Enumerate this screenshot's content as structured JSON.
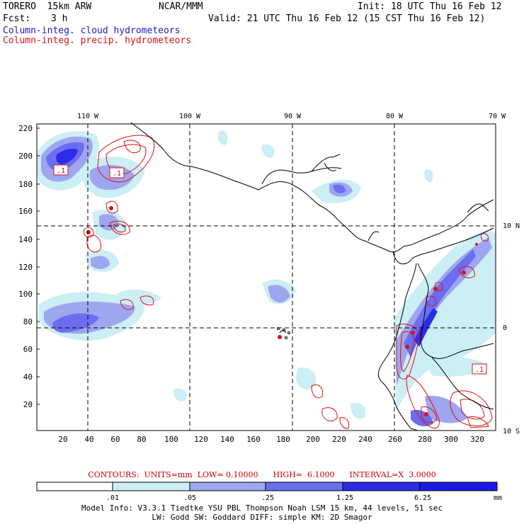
{
  "header": {
    "model": "TORERO  15km ARW",
    "org": "NCAR/MMM",
    "init": "Init: 18 UTC Thu 16 Feb 12",
    "fcst_label": "Fcst:",
    "fcst_value": "3 h",
    "valid": "Valid: 21 UTC Thu 16 Feb 12 (15 CST Thu 16 Feb 12)",
    "field1": "Column-integ. cloud hydrometeors",
    "field2": "Column-integ. precip. hydrometeors"
  },
  "map": {
    "lon_labels": [
      "110 W",
      "100 W",
      "90 W",
      "80 W",
      "70 W"
    ],
    "lat_labels": [
      "10 N",
      "0",
      "10 S"
    ],
    "y_ticks": [
      "220",
      "200",
      "180",
      "160",
      "140",
      "120",
      "100",
      "80",
      "60",
      "40",
      "20"
    ],
    "x_ticks": [
      "20",
      "40",
      "60",
      "80",
      "100",
      "120",
      "140",
      "160",
      "180",
      "200",
      "220",
      "240",
      "260",
      "280",
      "300",
      "320"
    ],
    "box_labels": [
      ".1",
      ".1",
      ".1"
    ],
    "colors": {
      "cloud_light": "#cceef5",
      "cloud_mid": "#9ea6f0",
      "cloud_dark": "#6b6ef0",
      "cloud_darkest": "#2c2ce8",
      "precip": "#dd1111",
      "coast": "#000000"
    }
  },
  "contours": {
    "text": "CONTOURS:  UNITS=mm  LOW= 0.10000      HIGH=  6.1000      INTERVAL=X  3.0000"
  },
  "colorbar": {
    "labels": [
      ".01",
      ".05",
      ".25",
      "1.25",
      "6.25"
    ],
    "unit": "mm",
    "colors": [
      "#ffffff",
      "#cceef5",
      "#9ea6f0",
      "#6b6ef0",
      "#2c2ce8"
    ]
  },
  "footer": {
    "line1": "Model Info: V3.3.1   Tiedtke YSU PBL  Thompson    Noah LSM  15 km,   44 levels,   51 sec",
    "line2": "LW: Godd SW: Goddard DIFF: simple KM: 2D Smagor"
  }
}
